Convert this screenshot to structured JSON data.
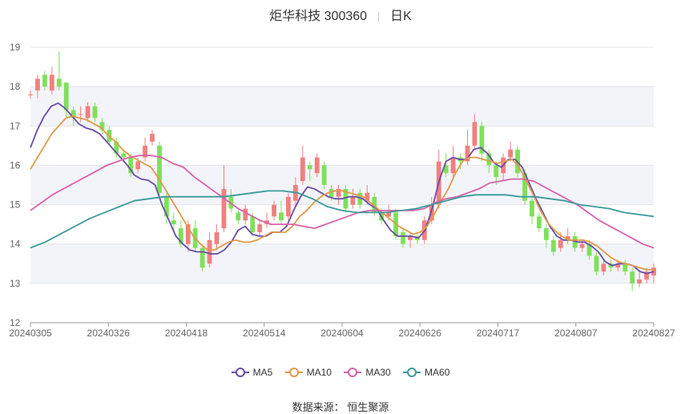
{
  "title": {
    "stock": "炬华科技 300360",
    "period": "日K"
  },
  "source_label": "数据来源：",
  "source_name": "恒生聚源",
  "colors": {
    "up": "#f08080",
    "down": "#7ee05a",
    "ma5": "#6a4ca5",
    "ma10": "#e09a4a",
    "ma30": "#d962a8",
    "ma60": "#3c9a9a",
    "band": "#f3f4fa",
    "grid": "#e4e4e4",
    "axis_text": "#666666"
  },
  "legend": [
    {
      "key": "ma5",
      "label": "MA5"
    },
    {
      "key": "ma10",
      "label": "MA10"
    },
    {
      "key": "ma30",
      "label": "MA30"
    },
    {
      "key": "ma60",
      "label": "MA60"
    }
  ],
  "chart_data": {
    "type": "candlestick",
    "ylim": [
      12,
      19
    ],
    "y_ticks": [
      12,
      13,
      14,
      15,
      16,
      17,
      18,
      19
    ],
    "x_tick_labels": [
      {
        "i": 0,
        "label": "20240305"
      },
      {
        "i": 15,
        "label": "20240326"
      },
      {
        "i": 30,
        "label": "20240418"
      },
      {
        "i": 45,
        "label": "20240514"
      },
      {
        "i": 60,
        "label": "20240604"
      },
      {
        "i": 75,
        "label": "20240626"
      },
      {
        "i": 90,
        "label": "20240717"
      },
      {
        "i": 105,
        "label": "20240807"
      },
      {
        "i": 120,
        "label": "20240827"
      }
    ],
    "series": [
      {
        "name": "MA5",
        "values": [
          16.45,
          16.9,
          17.25,
          17.5,
          17.58,
          17.45,
          17.25,
          17.05,
          16.95,
          16.9,
          16.8,
          16.6,
          16.4,
          16.2,
          16.0,
          15.75,
          15.65,
          15.62,
          15.5,
          15.0,
          14.6,
          14.2,
          14.0,
          13.85,
          13.8,
          13.8,
          13.75,
          13.75,
          13.85,
          14.05,
          14.35,
          14.45,
          14.25,
          14.2,
          14.2,
          14.3,
          14.3,
          14.45,
          14.85,
          15.2,
          15.45,
          15.4,
          15.3,
          15.2,
          15.15,
          15.15,
          15.2,
          15.2,
          15.15,
          15.0,
          14.9,
          14.6,
          14.35,
          14.2,
          14.2,
          14.2,
          14.15,
          14.35,
          14.9,
          15.6,
          16.1,
          16.2,
          16.15,
          16.15,
          16.4,
          16.45,
          16.3,
          16.05,
          15.95,
          16.15,
          16.15,
          15.95,
          15.55,
          15.15,
          14.8,
          14.45,
          14.2,
          14.1,
          14.1,
          14.05,
          14.05,
          13.95,
          13.8,
          13.55,
          13.45,
          13.5,
          13.5,
          13.45,
          13.3,
          13.25,
          13.3
        ]
      },
      {
        "name": "MA10",
        "values": [
          15.9,
          16.2,
          16.5,
          16.8,
          17.0,
          17.2,
          17.25,
          17.2,
          17.15,
          17.05,
          16.95,
          16.75,
          16.6,
          16.4,
          16.25,
          16.15,
          16.05,
          15.95,
          15.7,
          15.4,
          15.1,
          14.8,
          14.5,
          14.2,
          14.0,
          13.85,
          13.85,
          13.95,
          14.05,
          14.1,
          14.05,
          14.05,
          14.1,
          14.2,
          14.3,
          14.3,
          14.3,
          14.45,
          14.7,
          14.85,
          15.05,
          15.2,
          15.3,
          15.35,
          15.35,
          15.3,
          15.25,
          15.2,
          15.05,
          14.9,
          14.75,
          14.6,
          14.45,
          14.35,
          14.25,
          14.3,
          14.45,
          14.75,
          15.1,
          15.4,
          15.8,
          16.1,
          16.2,
          16.2,
          16.15,
          16.1,
          16.05,
          16.1,
          16.15,
          15.95,
          15.6,
          15.25,
          14.85,
          14.55,
          14.35,
          14.2,
          14.1,
          14.1,
          14.1,
          14.05,
          13.95,
          13.8,
          13.65,
          13.55,
          13.5,
          13.45,
          13.4,
          13.35,
          13.35
        ]
      },
      {
        "name": "MA30",
        "values": [
          14.85,
          15.05,
          15.25,
          15.4,
          15.55,
          15.7,
          15.85,
          16.0,
          16.1,
          16.2,
          16.25,
          16.25,
          16.2,
          16.05,
          15.95,
          15.7,
          15.5,
          15.3,
          15.1,
          14.9,
          14.75,
          14.6,
          14.5,
          14.5,
          14.5,
          14.45,
          14.4,
          14.5,
          14.6,
          14.7,
          14.8,
          14.85,
          14.85,
          14.85,
          14.85,
          14.85,
          14.9,
          15.05,
          15.15,
          15.2,
          15.3,
          15.4,
          15.55,
          15.6,
          15.65,
          15.65,
          15.6,
          15.45,
          15.3,
          15.15,
          15.0,
          14.8,
          14.6,
          14.45,
          14.3,
          14.15,
          14.0,
          13.9
        ]
      },
      {
        "name": "MA60",
        "values": [
          13.9,
          14.05,
          14.25,
          14.45,
          14.65,
          14.8,
          14.95,
          15.1,
          15.15,
          15.2,
          15.2,
          15.2,
          15.2,
          15.2,
          15.25,
          15.3,
          15.35,
          15.35,
          15.3,
          15.15,
          14.95,
          14.85,
          14.8,
          14.8,
          14.8,
          14.85,
          14.9,
          15.0,
          15.1,
          15.2,
          15.25,
          15.25,
          15.25,
          15.2,
          15.2,
          15.15,
          15.1,
          15.0,
          14.95,
          14.9,
          14.8,
          14.75,
          14.7
        ]
      }
    ],
    "candles": [
      [
        17.8,
        17.8,
        17.9,
        17.7
      ],
      [
        17.9,
        18.2,
        18.3,
        17.7
      ],
      [
        18.3,
        18.0,
        18.4,
        17.9
      ],
      [
        17.9,
        18.3,
        18.5,
        17.8
      ],
      [
        18.2,
        18.0,
        18.9,
        17.9
      ],
      [
        18.1,
        17.4,
        18.1,
        17.2
      ],
      [
        17.4,
        17.2,
        17.5,
        17.0
      ],
      [
        17.3,
        17.3,
        17.5,
        17.1
      ],
      [
        17.2,
        17.5,
        17.6,
        17.1
      ],
      [
        17.5,
        17.2,
        17.6,
        17.1
      ],
      [
        17.1,
        16.9,
        17.2,
        16.8
      ],
      [
        16.9,
        16.6,
        17.0,
        16.5
      ],
      [
        16.6,
        16.3,
        16.7,
        16.2
      ],
      [
        16.3,
        16.2,
        16.4,
        16.1
      ],
      [
        16.2,
        15.8,
        16.3,
        15.7
      ],
      [
        15.9,
        16.1,
        16.2,
        15.8
      ],
      [
        16.2,
        16.5,
        16.7,
        16.1
      ],
      [
        16.6,
        16.8,
        16.9,
        16.5
      ],
      [
        16.5,
        15.3,
        16.6,
        15.2
      ],
      [
        15.2,
        14.7,
        15.3,
        14.5
      ],
      [
        14.6,
        14.5,
        14.8,
        14.3
      ],
      [
        14.4,
        14.0,
        14.6,
        13.9
      ],
      [
        14.0,
        14.5,
        14.6,
        13.8
      ],
      [
        14.4,
        13.9,
        14.6,
        13.8
      ],
      [
        13.9,
        13.4,
        14.0,
        13.3
      ],
      [
        13.5,
        14.1,
        14.3,
        13.4
      ],
      [
        14.0,
        14.3,
        14.5,
        13.9
      ],
      [
        14.4,
        15.4,
        16.0,
        14.3
      ],
      [
        15.2,
        14.9,
        15.4,
        14.8
      ],
      [
        14.8,
        14.6,
        14.9,
        14.5
      ],
      [
        14.6,
        14.9,
        15.0,
        14.5
      ],
      [
        14.7,
        14.3,
        14.8,
        14.2
      ],
      [
        14.3,
        14.5,
        14.6,
        14.2
      ],
      [
        14.5,
        14.6,
        14.8,
        14.4
      ],
      [
        14.7,
        15.0,
        15.1,
        14.6
      ],
      [
        14.8,
        14.6,
        15.1,
        14.5
      ],
      [
        14.7,
        15.2,
        15.3,
        14.6
      ],
      [
        15.1,
        15.5,
        15.7,
        15.0
      ],
      [
        15.6,
        16.2,
        16.5,
        15.5
      ],
      [
        16.0,
        15.9,
        16.1,
        15.6
      ],
      [
        15.8,
        16.2,
        16.3,
        15.7
      ],
      [
        16.0,
        15.5,
        16.1,
        15.4
      ],
      [
        15.4,
        15.2,
        15.5,
        15.1
      ],
      [
        15.2,
        15.4,
        15.5,
        15.0
      ],
      [
        15.4,
        14.9,
        15.5,
        14.8
      ],
      [
        15.0,
        15.2,
        15.4,
        14.9
      ],
      [
        15.3,
        15.0,
        15.4,
        14.9
      ],
      [
        15.1,
        15.3,
        15.5,
        15.0
      ],
      [
        15.2,
        14.8,
        15.3,
        14.7
      ],
      [
        14.8,
        14.6,
        14.9,
        14.5
      ],
      [
        14.7,
        14.8,
        15.0,
        14.6
      ],
      [
        14.8,
        14.2,
        14.9,
        14.1
      ],
      [
        14.3,
        14.0,
        14.4,
        13.9
      ],
      [
        14.1,
        14.2,
        14.3,
        13.9
      ],
      [
        14.2,
        14.1,
        14.3,
        14.0
      ],
      [
        14.1,
        14.6,
        14.7,
        14.0
      ],
      [
        14.6,
        15.0,
        15.2,
        14.5
      ],
      [
        15.0,
        16.1,
        16.4,
        14.9
      ],
      [
        16.0,
        15.8,
        16.3,
        15.7
      ],
      [
        15.8,
        16.2,
        16.5,
        15.7
      ],
      [
        16.2,
        16.1,
        16.3,
        15.9
      ],
      [
        16.1,
        16.5,
        16.9,
        16.0
      ],
      [
        16.5,
        17.1,
        17.3,
        16.4
      ],
      [
        17.0,
        16.3,
        17.1,
        16.1
      ],
      [
        16.3,
        16.0,
        16.4,
        15.8
      ],
      [
        16.0,
        15.7,
        16.1,
        15.5
      ],
      [
        15.8,
        16.2,
        16.3,
        15.6
      ],
      [
        16.2,
        16.4,
        16.6,
        16.1
      ],
      [
        16.4,
        15.8,
        16.5,
        15.7
      ],
      [
        15.8,
        15.1,
        15.9,
        15.0
      ],
      [
        15.1,
        14.7,
        15.2,
        14.5
      ],
      [
        14.7,
        14.4,
        14.8,
        14.3
      ],
      [
        14.4,
        14.1,
        14.5,
        13.9
      ],
      [
        14.1,
        13.8,
        14.2,
        13.7
      ],
      [
        13.9,
        14.1,
        14.3,
        13.8
      ],
      [
        14.1,
        14.2,
        14.4,
        14.0
      ],
      [
        14.2,
        13.9,
        14.3,
        13.8
      ],
      [
        13.9,
        14.0,
        14.1,
        13.8
      ],
      [
        14.0,
        13.7,
        14.1,
        13.6
      ],
      [
        13.7,
        13.3,
        13.8,
        13.2
      ],
      [
        13.3,
        13.5,
        13.6,
        13.2
      ],
      [
        13.5,
        13.4,
        13.6,
        13.3
      ],
      [
        13.4,
        13.5,
        13.6,
        13.3
      ],
      [
        13.5,
        13.3,
        13.6,
        13.2
      ],
      [
        13.3,
        13.0,
        13.4,
        12.8
      ],
      [
        13.0,
        13.1,
        13.3,
        12.9
      ],
      [
        13.1,
        13.3,
        13.4,
        13.0
      ],
      [
        13.2,
        13.4,
        13.5,
        13.0
      ]
    ]
  }
}
